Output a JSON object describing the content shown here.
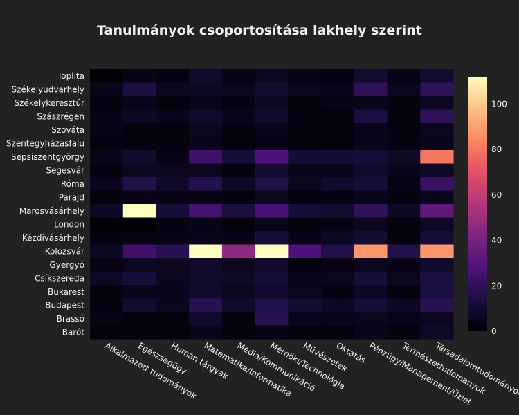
{
  "chart_data": {
    "type": "heatmap",
    "title": "Tanulmányok csoportosítása lakhely szerint",
    "xlabel": "",
    "ylabel": "",
    "x_categories": [
      "Alkalmazott tudományok",
      "Egészségügy",
      "Humán tárgyak",
      "Matematika/Informatika",
      "Média/Kommunikáció",
      "Mérnöki/Technológia",
      "Művészetek",
      "Oktatás",
      "Pénzügy/Management/Üzlet",
      "Természettudományok",
      "Társadalomtudományok"
    ],
    "y_categories": [
      "Toplița",
      "Székelyudvarhely",
      "Székelykeresztúr",
      "Szászrégen",
      "Szováta",
      "Szentegyházasfalu",
      "Sepsiszentgyörgy",
      "Segesvár",
      "Róma",
      "Parajd",
      "Marosvásárhely",
      "London",
      "Kézdivásárhely",
      "Kolozsvár",
      "Gyergyó",
      "Csíkszereda",
      "Bukarest",
      "Budapest",
      "Brassó",
      "Barót"
    ],
    "z": [
      [
        1,
        4,
        3,
        9,
        4,
        6,
        4,
        3,
        10,
        4,
        10
      ],
      [
        5,
        14,
        6,
        7,
        6,
        10,
        6,
        5,
        20,
        6,
        20
      ],
      [
        3,
        5,
        2,
        5,
        3,
        7,
        2,
        4,
        5,
        3,
        7
      ],
      [
        4,
        7,
        5,
        9,
        5,
        9,
        3,
        2,
        14,
        3,
        20
      ],
      [
        4,
        2,
        2,
        6,
        3,
        5,
        3,
        3,
        5,
        3,
        6
      ],
      [
        3,
        3,
        3,
        5,
        3,
        4,
        2,
        3,
        5,
        3,
        5
      ],
      [
        5,
        9,
        4,
        24,
        12,
        28,
        11,
        11,
        12,
        8,
        80
      ],
      [
        3,
        6,
        6,
        6,
        3,
        11,
        5,
        5,
        9,
        5,
        8
      ],
      [
        6,
        16,
        9,
        17,
        7,
        15,
        6,
        9,
        12,
        4,
        22
      ],
      [
        3,
        4,
        4,
        4,
        3,
        6,
        3,
        3,
        5,
        3,
        5
      ],
      [
        7,
        112,
        12,
        25,
        13,
        26,
        12,
        10,
        20,
        7,
        33
      ],
      [
        1,
        1,
        3,
        4,
        2,
        5,
        2,
        4,
        6,
        3,
        7
      ],
      [
        3,
        4,
        4,
        5,
        4,
        12,
        4,
        7,
        10,
        3,
        12
      ],
      [
        7,
        24,
        18,
        112,
        46,
        112,
        28,
        16,
        88,
        16,
        88
      ],
      [
        4,
        6,
        6,
        9,
        6,
        9,
        2,
        4,
        6,
        4,
        9
      ],
      [
        8,
        12,
        6,
        9,
        8,
        12,
        5,
        6,
        12,
        6,
        14
      ],
      [
        3,
        5,
        5,
        9,
        6,
        9,
        6,
        3,
        7,
        2,
        14
      ],
      [
        3,
        10,
        6,
        18,
        9,
        16,
        11,
        7,
        12,
        7,
        18
      ],
      [
        4,
        2,
        2,
        9,
        2,
        18,
        5,
        5,
        6,
        5,
        6
      ],
      [
        2,
        3,
        2,
        5,
        3,
        4,
        2,
        2,
        5,
        3,
        8
      ]
    ],
    "zlim": [
      0,
      112
    ],
    "colorbar_ticks": [
      0,
      20,
      40,
      60,
      80,
      100
    ],
    "colorscale": "magma",
    "grid": false,
    "legend": "colorbar-right"
  }
}
